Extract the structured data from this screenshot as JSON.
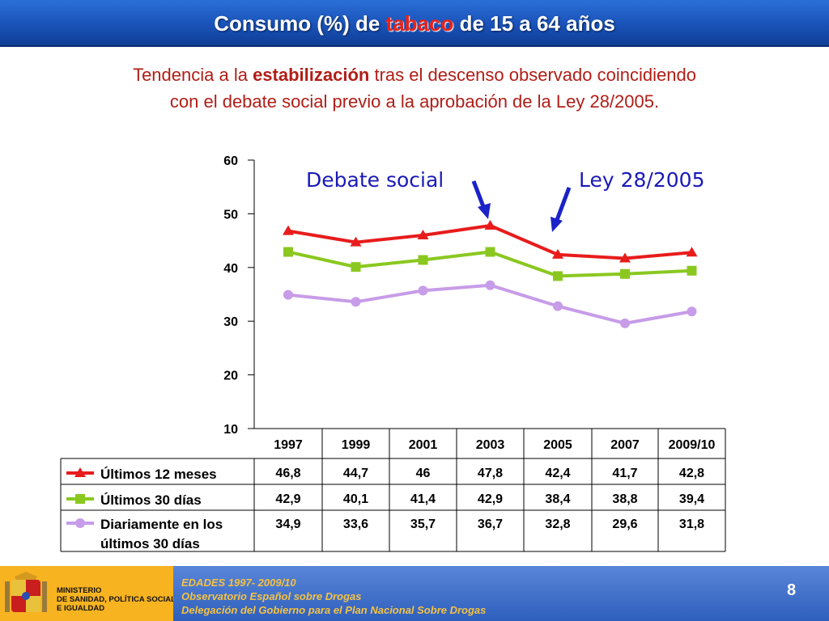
{
  "header": {
    "title_before": "Consumo (%) de ",
    "title_highlight": "tabaco",
    "title_after": " de 15 a 64 años"
  },
  "subtitle": {
    "line1_before": "Tendencia a la ",
    "line1_bold": "estabilización",
    "line1_after": " tras el descenso observado coincidiendo",
    "line2": "con el debate social previo a la aprobación de la Ley 28/2005."
  },
  "annotations": {
    "debate": "Debate social",
    "ley": "Ley 28/2005"
  },
  "colors": {
    "title_bar": "#1a52b8",
    "subtitle_text": "#b01e17",
    "annotation_text": "#1a1ab8",
    "arrow": "#1a22c8",
    "footer_text": "#f5c242"
  },
  "chart_data": {
    "type": "line",
    "categories": [
      "1997",
      "1999",
      "2001",
      "2003",
      "2005",
      "2007",
      "2009/10"
    ],
    "series": [
      {
        "name": "Últimos 12 meses",
        "color": "#e81c1c",
        "marker": "triangle",
        "values": [
          46.8,
          44.7,
          46,
          47.8,
          42.4,
          41.7,
          42.8
        ],
        "labels": [
          "46,8",
          "44,7",
          "46",
          "47,8",
          "42,4",
          "41,7",
          "42,8"
        ]
      },
      {
        "name": "Últimos 30 días",
        "color": "#8ac820",
        "marker": "square",
        "values": [
          42.9,
          40.1,
          41.4,
          42.9,
          38.4,
          38.8,
          39.4
        ],
        "labels": [
          "42,9",
          "40,1",
          "41,4",
          "42,9",
          "38,4",
          "38,8",
          "39,4"
        ]
      },
      {
        "name": "Diariamente en los últimos 30 días",
        "name_line1": "Diariamente en los",
        "name_line2": "últimos 30 días",
        "color": "#c79ce8",
        "marker": "circle",
        "values": [
          34.9,
          33.6,
          35.7,
          36.7,
          32.8,
          29.6,
          31.8
        ],
        "labels": [
          "34,9",
          "33,6",
          "35,7",
          "36,7",
          "32,8",
          "29,6",
          "31,8"
        ]
      }
    ],
    "ylim": [
      10,
      60
    ],
    "yticks": [
      "10",
      "20",
      "30",
      "40",
      "50",
      "60"
    ],
    "legend": "data-table-below",
    "grid": false
  },
  "footer": {
    "line1": "EDADES 1997- 2009/10",
    "line2": "Observatorio Español sobre Drogas",
    "line3": "Delegación del Gobierno para el Plan Nacional Sobre Drogas",
    "page": "8",
    "ministry_line1": "MINISTERIO",
    "ministry_line2": "DE SANIDAD, POLÍTICA SOCIAL",
    "ministry_line3": "E IGUALDAD"
  }
}
